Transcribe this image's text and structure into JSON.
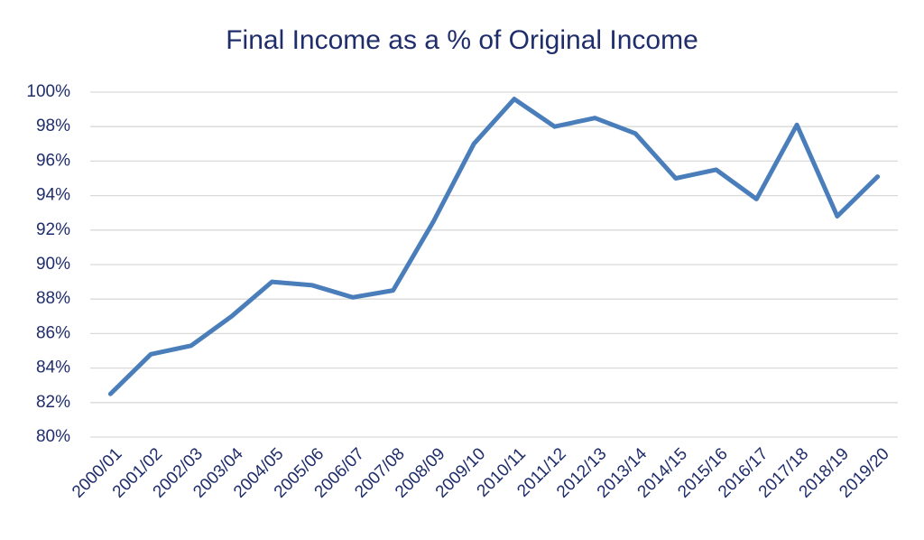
{
  "chart_data": {
    "type": "line",
    "title": "Final Income as a % of Original Income",
    "categories": [
      "2000/01",
      "2001/02",
      "2002/03",
      "2003/04",
      "2004/05",
      "2005/06",
      "2006/07",
      "2007/08",
      "2008/09",
      "2009/10",
      "2010/11",
      "2011/12",
      "2012/13",
      "2013/14",
      "2014/15",
      "2015/16",
      "2016/17",
      "2017/18",
      "2018/19",
      "2019/20"
    ],
    "values": [
      82.5,
      84.8,
      85.3,
      87.0,
      89.0,
      88.8,
      88.1,
      88.5,
      92.5,
      97.0,
      99.6,
      98.0,
      98.5,
      97.6,
      95.0,
      95.5,
      93.8,
      98.1,
      92.8,
      95.1
    ],
    "color": "#4a7ebb",
    "ylim": [
      80,
      100
    ],
    "yticks": [
      {
        "value": 80,
        "label": "80%"
      },
      {
        "value": 82,
        "label": "82%"
      },
      {
        "value": 84,
        "label": "84%"
      },
      {
        "value": 86,
        "label": "86%"
      },
      {
        "value": 88,
        "label": "88%"
      },
      {
        "value": 90,
        "label": "90%"
      },
      {
        "value": 92,
        "label": "92%"
      },
      {
        "value": 94,
        "label": "94%"
      },
      {
        "value": 96,
        "label": "96%"
      },
      {
        "value": 98,
        "label": "98%"
      },
      {
        "value": 100,
        "label": "100%"
      }
    ],
    "grid": true
  }
}
